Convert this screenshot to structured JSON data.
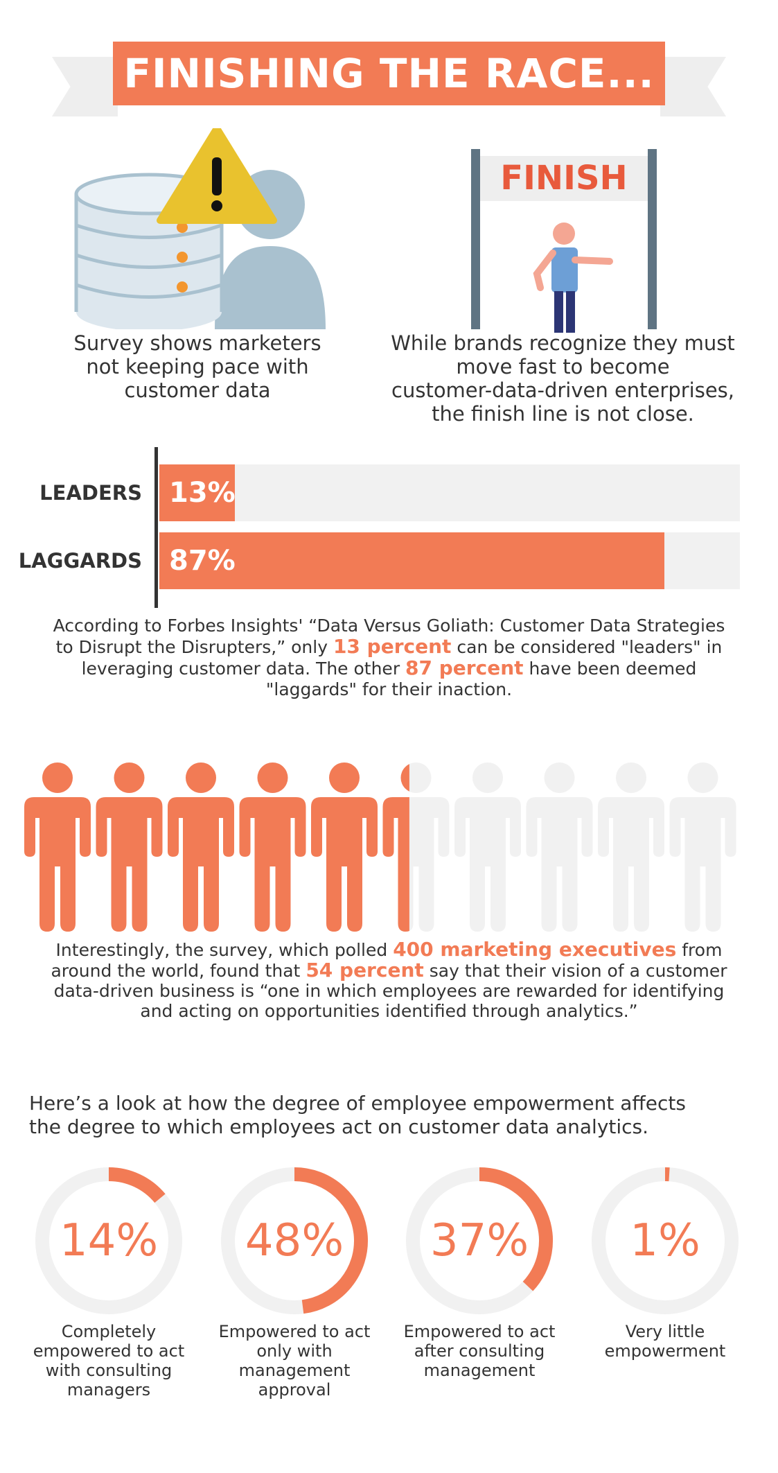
{
  "colors": {
    "accent": "#f27b55",
    "track": "#f1f1f1",
    "ink": "#333333",
    "person_gray": "#a9c1cf",
    "post": "#5f7483"
  },
  "header": {
    "title": "FINISHING THE RACE..."
  },
  "intro": {
    "left_caption": [
      "Survey shows marketers",
      "not keeping pace with",
      "customer data"
    ],
    "right_caption": [
      "While brands recognize they must",
      "move fast to become",
      "customer-data-driven enterprises,",
      "the finish line is not close."
    ],
    "finish_sign": "FINISH",
    "icons": [
      "database-icon",
      "warning-icon",
      "user-silhouette-icon",
      "finish-line-icon",
      "runner-icon"
    ]
  },
  "bars": {
    "items": [
      {
        "label": "LEADERS",
        "value_text": "13%",
        "value": 13
      },
      {
        "label": "LAGGARDS",
        "value_text": "87%",
        "value": 87
      }
    ]
  },
  "forbes_paragraph": {
    "line1": "According to Forbes Insights' “Data Versus Goliath: Customer Data Strategies",
    "line2_a": "to Disrupt the Disrupters,” only ",
    "line2_hl": "13 percent",
    "line2_b": " can be considered \"leaders\" in",
    "line3_a": "leveraging customer data. The other ",
    "line3_hl": "87 percent",
    "line3_b": " have been deemed",
    "line4": "\"laggards\" for their inaction."
  },
  "people": {
    "total": 10,
    "filled": 5.4,
    "percent": 54
  },
  "survey_paragraph": {
    "line1_a": "Interestingly, the survey, which polled ",
    "line1_hl": "400 marketing executives",
    "line1_b": " from",
    "line2_a": "around the world, found that ",
    "line2_hl": "54 percent",
    "line2_b": " say that their vision of a customer",
    "line3": "data-driven business is “one in which employees are rewarded for identifying",
    "line4": "and acting on opportunities identified through analytics.”"
  },
  "empowerment": {
    "intro_line1": "Here’s a look at how the degree of employee empowerment affects",
    "intro_line2": "the degree to which employees act on customer data analytics.",
    "rings": [
      {
        "value": 14,
        "text": "14%",
        "label": [
          "Completely",
          "empowered to act",
          "with consulting",
          "managers"
        ]
      },
      {
        "value": 48,
        "text": "48%",
        "label": [
          "Empowered to act",
          "only with",
          "management",
          "approval"
        ]
      },
      {
        "value": 37,
        "text": "37%",
        "label": [
          "Empowered to act",
          "after consulting",
          "management"
        ]
      },
      {
        "value": 1,
        "text": "1%",
        "label": [
          "Very little",
          "empowerment"
        ]
      }
    ]
  }
}
